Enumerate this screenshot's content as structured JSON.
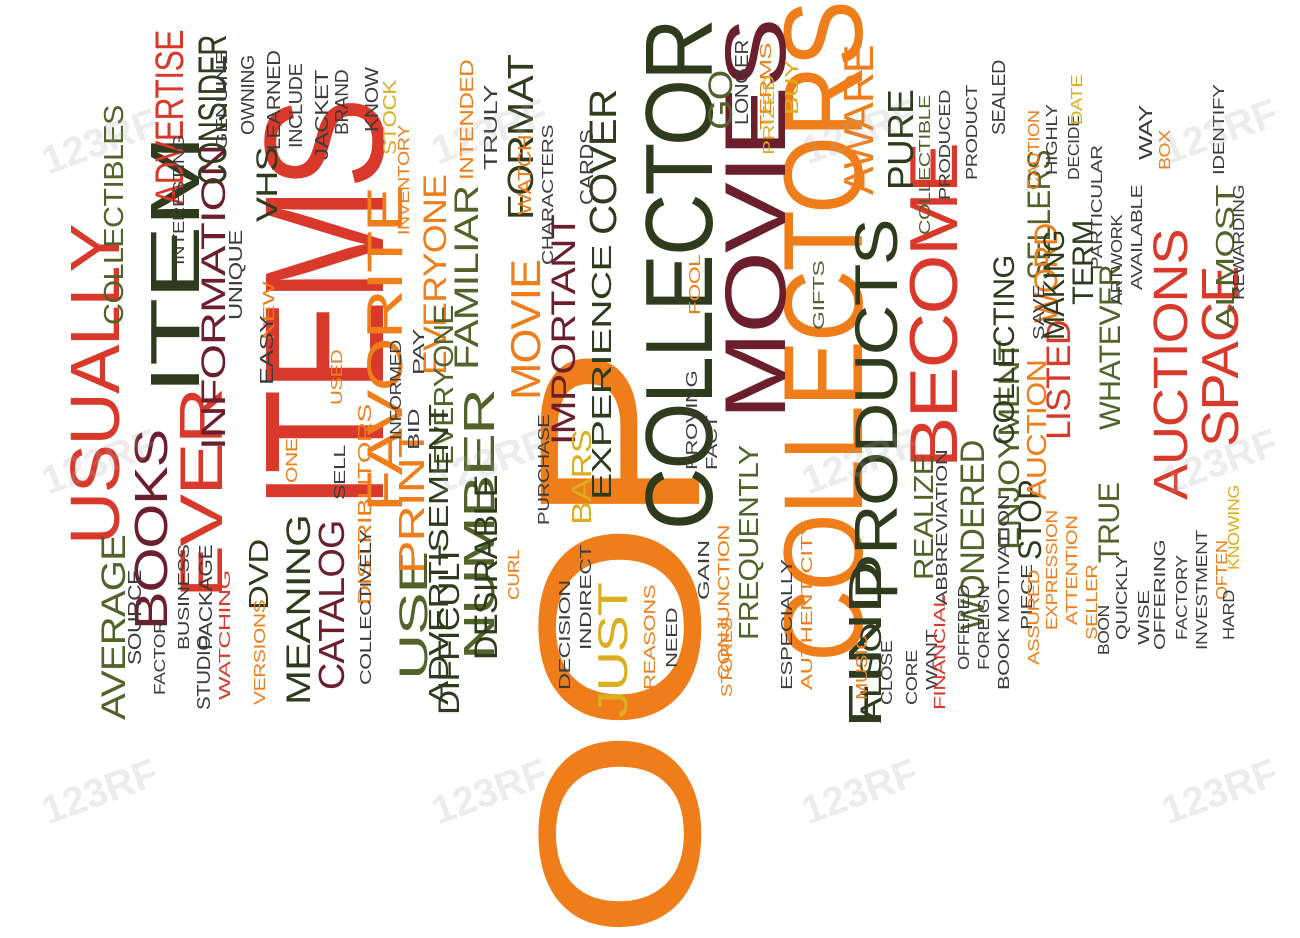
{
  "colors": {
    "red": "#d8392b",
    "orange": "#ef7d1a",
    "olive": "#52632a",
    "dark_green": "#2e3b1c",
    "maroon": "#6b1e2b",
    "yellow": "#dcae1d",
    "gray": "#3c3c3c"
  },
  "watermark_text": "123RF",
  "words": [
    {
      "t": "OOP",
      "c": "orange"
    },
    {
      "t": "ITEMS",
      "c": "red"
    },
    {
      "t": "COLLECTORS",
      "c": "orange"
    },
    {
      "t": "COLLECTOR",
      "c": "dark_green"
    },
    {
      "t": "MOVIES",
      "c": "maroon"
    },
    {
      "t": "ITEM",
      "c": "dark_green"
    },
    {
      "t": "USUALLY",
      "c": "red"
    },
    {
      "t": "BECOME",
      "c": "red"
    },
    {
      "t": "PRODUCTS",
      "c": "dark_green"
    },
    {
      "t": "EVER",
      "c": "red"
    },
    {
      "t": "FAVORITE",
      "c": "orange"
    },
    {
      "t": "AUCTIONS",
      "c": "red"
    },
    {
      "t": "SPACE",
      "c": "red"
    },
    {
      "t": "BOOKS",
      "c": "maroon"
    },
    {
      "t": "MOVIE",
      "c": "orange"
    },
    {
      "t": "NUMBER",
      "c": "olive"
    },
    {
      "t": "FIND",
      "c": "dark_green"
    },
    {
      "t": "AWARE",
      "c": "orange"
    },
    {
      "t": "JUST",
      "c": "yellow"
    },
    {
      "t": "USE",
      "c": "olive"
    },
    {
      "t": "PRINT",
      "c": "orange"
    },
    {
      "t": "DESIRABLE",
      "c": "dark_green"
    },
    {
      "t": "FORMAT",
      "c": "dark_green"
    },
    {
      "t": "IMPORTANT",
      "c": "maroon"
    },
    {
      "t": "COVER",
      "c": "dark_green"
    },
    {
      "t": "EXPERIENCE",
      "c": "dark_green"
    },
    {
      "t": "FAMILIAR",
      "c": "olive"
    },
    {
      "t": "EVERYONE",
      "c": "orange"
    },
    {
      "t": "EVERYONE",
      "c": "olive"
    },
    {
      "t": "INFORMATION",
      "c": "maroon"
    },
    {
      "t": "CONSIDER",
      "c": "dark_green"
    },
    {
      "t": "ADVERTISE",
      "c": "red"
    },
    {
      "t": "COLLECTIBLES",
      "c": "olive"
    },
    {
      "t": "ADVERTISEMENT",
      "c": "dark_green"
    },
    {
      "t": "DIFFICULT",
      "c": "dark_green"
    },
    {
      "t": "CATALOG",
      "c": "maroon"
    },
    {
      "t": "MEANING",
      "c": "dark_green"
    },
    {
      "t": "DVD",
      "c": "dark_green"
    },
    {
      "t": "AVERAGE",
      "c": "olive"
    },
    {
      "t": "VHS",
      "c": "dark_green"
    },
    {
      "t": "GO",
      "c": "olive"
    },
    {
      "t": "PURE",
      "c": "dark_green"
    },
    {
      "t": "FREQUENTLY",
      "c": "olive"
    },
    {
      "t": "ALSO",
      "c": "dark_green"
    },
    {
      "t": "REALIZE",
      "c": "olive"
    },
    {
      "t": "WONDERED",
      "c": "olive"
    },
    {
      "t": "ENJOYMENT",
      "c": "olive"
    },
    {
      "t": "COLLECTING",
      "c": "dark_green"
    },
    {
      "t": "SELLERS",
      "c": "olive"
    },
    {
      "t": "STOP",
      "c": "dark_green"
    },
    {
      "t": "AUCTION",
      "c": "orange"
    },
    {
      "t": "WORD",
      "c": "orange"
    },
    {
      "t": "LISTED",
      "c": "red"
    },
    {
      "t": "MAKING",
      "c": "dark_green"
    },
    {
      "t": "TERM",
      "c": "dark_green"
    },
    {
      "t": "TRUE",
      "c": "olive"
    },
    {
      "t": "WHATEVER",
      "c": "olive"
    },
    {
      "t": "ALMOST",
      "c": "olive"
    },
    {
      "t": "BARS",
      "c": "yellow"
    },
    {
      "t": "TERMS",
      "c": "orange"
    },
    {
      "t": "BUY",
      "c": "yellow"
    },
    {
      "t": "PRIZED",
      "c": "yellow"
    },
    {
      "t": "LONGER",
      "c": "gray"
    },
    {
      "t": "WATCH",
      "c": "orange"
    },
    {
      "t": "CARDS",
      "c": "gray"
    },
    {
      "t": "CHARACTERS",
      "c": "gray"
    },
    {
      "t": "TRULY",
      "c": "gray"
    },
    {
      "t": "INTENDED",
      "c": "orange"
    },
    {
      "t": "STOCK",
      "c": "yellow"
    },
    {
      "t": "KNOW",
      "c": "gray"
    },
    {
      "t": "BRAND",
      "c": "gray"
    },
    {
      "t": "JACKET",
      "c": "gray"
    },
    {
      "t": "INCLUDE",
      "c": "gray"
    },
    {
      "t": "LEARNED",
      "c": "gray"
    },
    {
      "t": "OWNING",
      "c": "gray"
    },
    {
      "t": "GENUINE",
      "c": "gray"
    },
    {
      "t": "INTERESTING",
      "c": "gray"
    },
    {
      "t": "INVENTORY",
      "c": "orange"
    },
    {
      "t": "UNIQUE",
      "c": "gray"
    },
    {
      "t": "NEW",
      "c": "orange"
    },
    {
      "t": "EASY",
      "c": "gray"
    },
    {
      "t": "USED",
      "c": "orange"
    },
    {
      "t": "PAY",
      "c": "gray"
    },
    {
      "t": "INFORMED",
      "c": "gray"
    },
    {
      "t": "BID",
      "c": "gray"
    },
    {
      "t": "ONE",
      "c": "orange"
    },
    {
      "t": "SELL",
      "c": "gray"
    },
    {
      "t": "DISTRIBUTORS",
      "c": "orange"
    },
    {
      "t": "CURL",
      "c": "orange"
    },
    {
      "t": "COLLECTIVELY",
      "c": "gray"
    },
    {
      "t": "VERSIONS",
      "c": "orange"
    },
    {
      "t": "WATCHING",
      "c": "red"
    },
    {
      "t": "PACKAGE",
      "c": "gray"
    },
    {
      "t": "BUSINESS",
      "c": "gray"
    },
    {
      "t": "STUDIO",
      "c": "gray"
    },
    {
      "t": "SOURCE",
      "c": "gray"
    },
    {
      "t": "FACTOR",
      "c": "gray"
    },
    {
      "t": "PURCHASE",
      "c": "gray"
    },
    {
      "t": "DECISION",
      "c": "gray"
    },
    {
      "t": "INDIRECT",
      "c": "gray"
    },
    {
      "t": "REASONS",
      "c": "orange"
    },
    {
      "t": "NEED",
      "c": "gray"
    },
    {
      "t": "PROVING",
      "c": "gray"
    },
    {
      "t": "FACT",
      "c": "gray"
    },
    {
      "t": "GAIN",
      "c": "gray"
    },
    {
      "t": "CONJUNCTION",
      "c": "orange"
    },
    {
      "t": "FOOL",
      "c": "orange"
    },
    {
      "t": "GIFTS",
      "c": "olive"
    },
    {
      "t": "STORES",
      "c": "orange"
    },
    {
      "t": "ESPECIALLY",
      "c": "gray"
    },
    {
      "t": "AUTHENTICITY",
      "c": "orange"
    },
    {
      "t": "MUSIC",
      "c": "orange"
    },
    {
      "t": "CLOSE",
      "c": "gray"
    },
    {
      "t": "CORE",
      "c": "gray"
    },
    {
      "t": "WANT",
      "c": "gray"
    },
    {
      "t": "FINANCIAL",
      "c": "red"
    },
    {
      "t": "OFFERED",
      "c": "gray"
    },
    {
      "t": "ABBREVIATION",
      "c": "gray"
    },
    {
      "t": "FOREIGN",
      "c": "gray"
    },
    {
      "t": "BOOK MOTIVATION",
      "c": "gray"
    },
    {
      "t": "PIECE",
      "c": "gray"
    },
    {
      "t": "COLLECTIBLE",
      "c": "olive"
    },
    {
      "t": "PRODUCED",
      "c": "gray"
    },
    {
      "t": "PRODUCT",
      "c": "gray"
    },
    {
      "t": "SEALED",
      "c": "gray"
    },
    {
      "t": "SAVE",
      "c": "gray"
    },
    {
      "t": "CAUTION",
      "c": "orange"
    },
    {
      "t": "HIGHLY",
      "c": "gray"
    },
    {
      "t": "DECIDE",
      "c": "gray"
    },
    {
      "t": "PARTICULAR",
      "c": "gray"
    },
    {
      "t": "ARTWORK",
      "c": "gray"
    },
    {
      "t": "AVAILABLE",
      "c": "gray"
    },
    {
      "t": "WAY",
      "c": "gray"
    },
    {
      "t": "DATE",
      "c": "yellow"
    },
    {
      "t": "BOX",
      "c": "orange"
    },
    {
      "t": "IDENTIFY",
      "c": "gray"
    },
    {
      "t": "REWARDING",
      "c": "gray"
    },
    {
      "t": "ASSURED",
      "c": "orange"
    },
    {
      "t": "EXPRESSION",
      "c": "orange"
    },
    {
      "t": "ATTENTION",
      "c": "orange"
    },
    {
      "t": "SELLER",
      "c": "orange"
    },
    {
      "t": "BOON",
      "c": "gray"
    },
    {
      "t": "QUICKLY",
      "c": "gray"
    },
    {
      "t": "WISE",
      "c": "gray"
    },
    {
      "t": "OFFERING",
      "c": "gray"
    },
    {
      "t": "FACTORY",
      "c": "gray"
    },
    {
      "t": "INVESTMENT",
      "c": "gray"
    },
    {
      "t": "OFTEN",
      "c": "orange"
    },
    {
      "t": "KNOWING",
      "c": "yellow"
    },
    {
      "t": "HARD",
      "c": "gray"
    }
  ]
}
